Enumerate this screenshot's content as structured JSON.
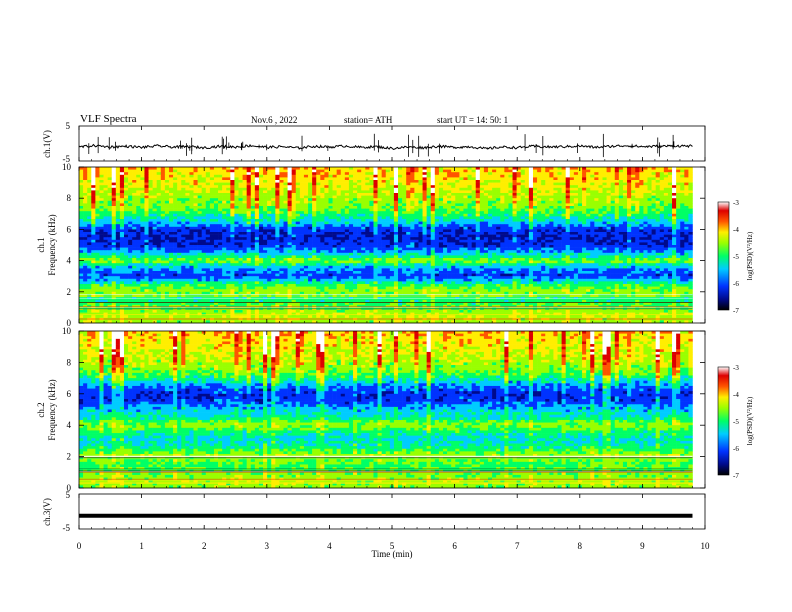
{
  "header": {
    "title": "VLF  Spectra",
    "date": "Nov.6  , 2022",
    "station": "station= ATH",
    "start": "start  UT  =    14: 50: 1"
  },
  "chart_data": [
    {
      "id": "ch1-waveform",
      "type": "line",
      "ylabel": "ch.1(V)",
      "ylim": [
        -5,
        5
      ],
      "yticks": [
        "5",
        "-5"
      ],
      "xlim": [
        0,
        10
      ],
      "series": [
        {
          "color": "#000000",
          "x": [
            0.0,
            0.25,
            0.5,
            0.75,
            1.0,
            1.25,
            1.5,
            1.75,
            2.0,
            2.25,
            2.5,
            2.75,
            3.0,
            3.25,
            3.5,
            3.75,
            4.0,
            4.25,
            4.5,
            4.75,
            5.0,
            5.25,
            5.5,
            5.75,
            6.0,
            6.25,
            6.5,
            6.75,
            7.0,
            7.25,
            7.5,
            7.75,
            8.0,
            8.25,
            8.5,
            8.75,
            9.0,
            9.25,
            9.5,
            9.8
          ],
          "y": [
            -1.0,
            -0.6,
            -1.0,
            -0.8,
            -1.1,
            -0.7,
            -1.0,
            -0.9,
            -1.2,
            -0.8,
            -1.0,
            -0.6,
            -1.1,
            -0.9,
            -1.3,
            -0.8,
            -1.0,
            -0.7,
            -1.1,
            -0.9,
            -1.4,
            -1.0,
            -1.2,
            -0.8,
            -1.1,
            -0.9,
            -1.5,
            -1.0,
            -1.2,
            -0.8,
            -1.0,
            -0.9,
            -0.7,
            -1.1,
            -0.8,
            -0.6,
            -0.9,
            -0.8,
            -0.7,
            -0.7
          ]
        }
      ]
    },
    {
      "id": "ch1-spectrogram",
      "type": "heatmap",
      "ylabel_top": "ch.1",
      "ylabel": "Frequency  (kHz)",
      "ylim": [
        0,
        10
      ],
      "yticks": [
        "10",
        "8",
        "6",
        "4",
        "2",
        "0"
      ],
      "xlim": [
        0,
        10
      ],
      "data_xmax": 9.8,
      "profile_kHz": [
        0.0,
        0.5,
        1.0,
        1.5,
        2.0,
        2.5,
        3.0,
        3.5,
        4.0,
        4.5,
        5.0,
        5.5,
        6.0,
        6.5,
        7.0,
        7.5,
        8.0,
        8.5,
        9.0,
        9.5,
        10.0
      ],
      "profile_logPSD": [
        -4.8,
        -4.7,
        -5.0,
        -5.4,
        -4.8,
        -5.3,
        -6.2,
        -5.9,
        -4.9,
        -5.8,
        -6.3,
        -6.4,
        -6.3,
        -5.7,
        -5.3,
        -5.0,
        -4.9,
        -4.7,
        -4.6,
        -4.5,
        -4.4
      ],
      "colorbar": {
        "label": "log(PSD)(V²/Hz)",
        "min": -7,
        "max": -3,
        "ticks": [
          "-3",
          "-4",
          "-5",
          "-6",
          "-7"
        ]
      }
    },
    {
      "id": "ch2-spectrogram",
      "type": "heatmap",
      "ylabel_top": "ch.2",
      "ylabel": "Frequency  (kHz)",
      "ylim": [
        0,
        10
      ],
      "yticks": [
        "10",
        "8",
        "6",
        "4",
        "2",
        "0"
      ],
      "xlim": [
        0,
        10
      ],
      "data_xmax": 9.8,
      "profile_kHz": [
        0.0,
        0.5,
        1.0,
        1.5,
        2.0,
        2.5,
        3.0,
        3.5,
        4.0,
        4.5,
        5.0,
        5.5,
        6.0,
        6.5,
        7.0,
        7.5,
        8.0,
        8.5,
        9.0,
        9.5,
        10.0
      ],
      "profile_logPSD": [
        -4.9,
        -4.8,
        -5.0,
        -5.2,
        -4.7,
        -5.3,
        -5.6,
        -5.4,
        -4.8,
        -5.5,
        -5.7,
        -6.2,
        -6.3,
        -6.0,
        -5.4,
        -5.0,
        -4.8,
        -4.7,
        -4.6,
        -4.5,
        -4.4
      ],
      "colorbar": {
        "label": "log(PSD)(V²/Hz)",
        "min": -7,
        "max": -3,
        "ticks": [
          "-3",
          "-4",
          "-5",
          "-6",
          "-7"
        ]
      }
    },
    {
      "id": "ch3-waveform",
      "type": "line",
      "ylabel": "ch.3(V)",
      "ylim": [
        -5,
        5
      ],
      "yticks": [
        "5",
        "-5"
      ],
      "xlim": [
        0,
        10
      ],
      "xlabel": "Time  (min)",
      "xticks": [
        "0",
        "1",
        "2",
        "3",
        "4",
        "5",
        "6",
        "7",
        "8",
        "9",
        "10"
      ],
      "series": [
        {
          "color": "#000000",
          "x": [
            0.0,
            9.8
          ],
          "y": [
            -1.2,
            -1.2
          ]
        }
      ]
    }
  ],
  "colormap": [
    "#000000",
    "#000a8c",
    "#0033ff",
    "#00ccff",
    "#00ff66",
    "#99ff00",
    "#ffee00",
    "#ff5500",
    "#dd0000",
    "#ffffff"
  ]
}
